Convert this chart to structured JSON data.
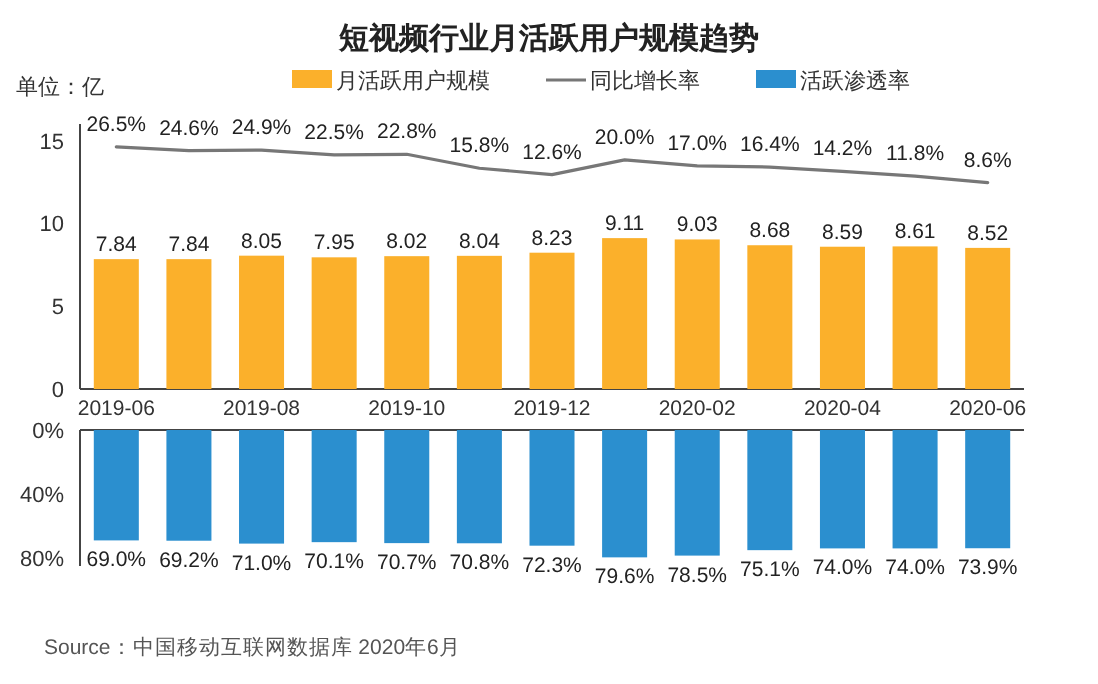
{
  "chart_data": [
    {
      "type": "bar",
      "title": "短视频行业月活跃用户规模趋势",
      "ylabel": "单位：亿",
      "legend": "top",
      "data_labels": true,
      "categories": [
        "2019-06",
        null,
        "2019-08",
        null,
        "2019-10",
        null,
        "2019-12",
        null,
        "2020-02",
        null,
        "2020-04",
        null,
        "2020-06"
      ],
      "ylim": [
        0,
        16
      ],
      "yticks": [
        0,
        5,
        10,
        15
      ],
      "y2lim": [
        -95,
        38
      ],
      "series": [
        {
          "name": "月活跃用户规模",
          "type": "bar",
          "color": "#fbb02b",
          "values": [
            7.84,
            7.84,
            8.05,
            7.95,
            8.02,
            8.04,
            8.23,
            9.11,
            9.03,
            8.68,
            8.59,
            8.61,
            8.52
          ]
        },
        {
          "name": "同比增长率",
          "type": "line",
          "axis": "y2",
          "color": "#777777",
          "values": [
            26.5,
            24.6,
            24.9,
            22.5,
            22.8,
            15.8,
            12.6,
            20.0,
            17.0,
            16.4,
            14.2,
            11.8,
            8.6
          ],
          "value_labels": [
            "26.5%",
            "24.6%",
            "24.9%",
            "22.5%",
            "22.8%",
            "15.8%",
            "12.6%",
            "20.0%",
            "17.0%",
            "16.4%",
            "14.2%",
            "11.8%",
            "8.6%"
          ]
        }
      ]
    },
    {
      "type": "bar",
      "tick_labels": "y",
      "ylim": [
        85,
        0
      ],
      "yticks": [
        {
          "value": 0,
          "label": "0%"
        },
        {
          "value": 40,
          "label": "40%"
        },
        {
          "value": 80,
          "label": "80%"
        }
      ],
      "series": [
        {
          "name": "活跃渗透率",
          "color": "#2b8fcf",
          "values": [
            69.0,
            69.2,
            71.0,
            70.1,
            70.7,
            70.8,
            72.3,
            79.6,
            78.5,
            75.1,
            74.0,
            74.0,
            73.9
          ],
          "value_labels": [
            "69.0%",
            "69.2%",
            "71.0%",
            "70.1%",
            "70.7%",
            "70.8%",
            "72.3%",
            "79.6%",
            "78.5%",
            "75.1%",
            "74.0%",
            "74.0%",
            "73.9%"
          ]
        }
      ],
      "annotations": [
        "Source：中国移动互联网数据库 2020年6月"
      ]
    }
  ]
}
